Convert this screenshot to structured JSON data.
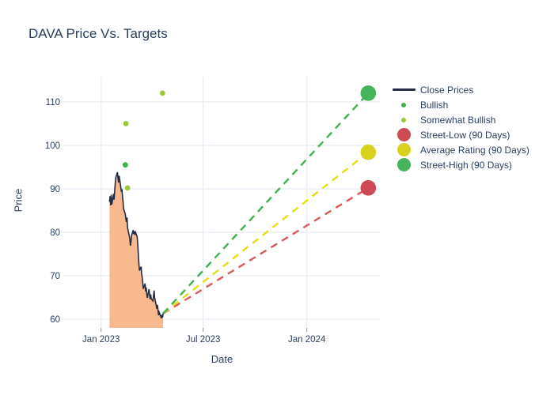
{
  "title": "DAVA Price Vs. Targets",
  "colors": {
    "text": "#2a3f5f",
    "grid": "#e8edf5",
    "close_line": "#222c44",
    "close_fill": "#f8b98e",
    "bullish": "#3eb34a",
    "somewhat_bullish": "#9aca2f",
    "street_low_marker": "#cd4a54",
    "street_low_line": "#db5858",
    "average_marker": "#d8d21e",
    "average_line": "#e6dd17",
    "street_high_marker": "#47b35c",
    "street_high_line": "#42b04e"
  },
  "chart_data": {
    "type": "line",
    "title": "DAVA Price Vs. Targets",
    "xlabel": "Date",
    "ylabel": "Price",
    "grid": true,
    "legend_position": "right",
    "x_range": [
      "2022-10-26",
      "2024-05-11"
    ],
    "y_range": [
      58.0,
      115.8
    ],
    "x_ticks": [
      {
        "date": "2023-01-01",
        "label": "Jan 2023"
      },
      {
        "date": "2023-07-01",
        "label": "Jul 2023"
      },
      {
        "date": "2024-01-01",
        "label": "Jan 2024"
      }
    ],
    "y_ticks": [
      60,
      70,
      80,
      90,
      100,
      110
    ],
    "series": [
      {
        "name": "Close Prices",
        "type": "line",
        "color": "#222c44",
        "fill_color": "#f8b98e",
        "dates": [
          "2023-01-16",
          "2023-01-17",
          "2023-01-18",
          "2023-01-19",
          "2023-01-20",
          "2023-01-23",
          "2023-01-24",
          "2023-01-25",
          "2023-01-26",
          "2023-01-27",
          "2023-01-30",
          "2023-01-31",
          "2023-02-01",
          "2023-02-02",
          "2023-02-03",
          "2023-02-06",
          "2023-02-07",
          "2023-02-08",
          "2023-02-09",
          "2023-02-10",
          "2023-02-13",
          "2023-02-14",
          "2023-02-15",
          "2023-02-16",
          "2023-02-17",
          "2023-02-21",
          "2023-02-22",
          "2023-02-23",
          "2023-02-24",
          "2023-02-27",
          "2023-02-28",
          "2023-03-01",
          "2023-03-02",
          "2023-03-03",
          "2023-03-06",
          "2023-03-07",
          "2023-03-08",
          "2023-03-09",
          "2023-03-10",
          "2023-03-13",
          "2023-03-14",
          "2023-03-15",
          "2023-03-16",
          "2023-03-17",
          "2023-03-20",
          "2023-03-21",
          "2023-03-22",
          "2023-03-23",
          "2023-03-24",
          "2023-03-27",
          "2023-03-28",
          "2023-03-29",
          "2023-03-30",
          "2023-03-31",
          "2023-04-03",
          "2023-04-04",
          "2023-04-05",
          "2023-04-06",
          "2023-04-10",
          "2023-04-11",
          "2023-04-12",
          "2023-04-13",
          "2023-04-14",
          "2023-04-17",
          "2023-04-18",
          "2023-04-19",
          "2023-04-20",
          "2023-04-21"
        ],
        "values": [
          87.0,
          88.3,
          86.2,
          88.6,
          86.4,
          88.8,
          87.5,
          89.2,
          91.0,
          92.5,
          93.8,
          92.4,
          91.4,
          93.0,
          92.2,
          89.3,
          89.9,
          88.2,
          87.0,
          85.4,
          84.2,
          83.0,
          82.4,
          83.4,
          81.0,
          78.6,
          76.9,
          77.8,
          79.2,
          80.5,
          79.6,
          80.2,
          79.4,
          80.0,
          79.0,
          77.5,
          75.2,
          73.0,
          71.2,
          72.1,
          70.3,
          69.6,
          68.4,
          67.0,
          68.2,
          66.4,
          67.3,
          65.9,
          64.9,
          66.9,
          65.6,
          64.6,
          65.7,
          64.7,
          64.2,
          65.4,
          66.6,
          65.0,
          62.4,
          63.3,
          62.0,
          60.9,
          61.6,
          60.6,
          60.2,
          61.0,
          60.4,
          61.3
        ]
      },
      {
        "name": "Bullish",
        "type": "scatter",
        "color": "#3eb34a",
        "points": [
          {
            "date": "2023-02-13",
            "value": 95.5
          }
        ]
      },
      {
        "name": "Somewhat Bullish",
        "type": "scatter",
        "color": "#9aca2f",
        "points": [
          {
            "date": "2023-02-14",
            "value": 105
          },
          {
            "date": "2023-02-17",
            "value": 90.2
          },
          {
            "date": "2023-04-20",
            "value": 112
          }
        ]
      },
      {
        "name": "Street-Low (90 Days)",
        "type": "target",
        "color": "#cd4a54",
        "line_color": "#db5858",
        "date": "2024-04-19",
        "value": 90.2
      },
      {
        "name": "Average Rating (90 Days)",
        "type": "target",
        "color": "#d8d21e",
        "line_color": "#e6dd17",
        "date": "2024-04-19",
        "value": 98.4
      },
      {
        "name": "Street-High (90 Days)",
        "type": "target",
        "color": "#47b35c",
        "line_color": "#42b04e",
        "date": "2024-04-19",
        "value": 112
      }
    ]
  },
  "legend": {
    "items": [
      {
        "label": "Close Prices",
        "marker": "line",
        "color": "#222c44"
      },
      {
        "label": "Bullish",
        "marker": "dot",
        "color": "#3eb34a"
      },
      {
        "label": "Somewhat Bullish",
        "marker": "dot",
        "color": "#9aca2f"
      },
      {
        "label": "Street-Low (90 Days)",
        "marker": "bigdot",
        "color": "#cd4a54"
      },
      {
        "label": "Average Rating (90 Days)",
        "marker": "bigdot",
        "color": "#d8d21e"
      },
      {
        "label": "Street-High (90 Days)",
        "marker": "bigdot",
        "color": "#47b35c"
      }
    ]
  }
}
